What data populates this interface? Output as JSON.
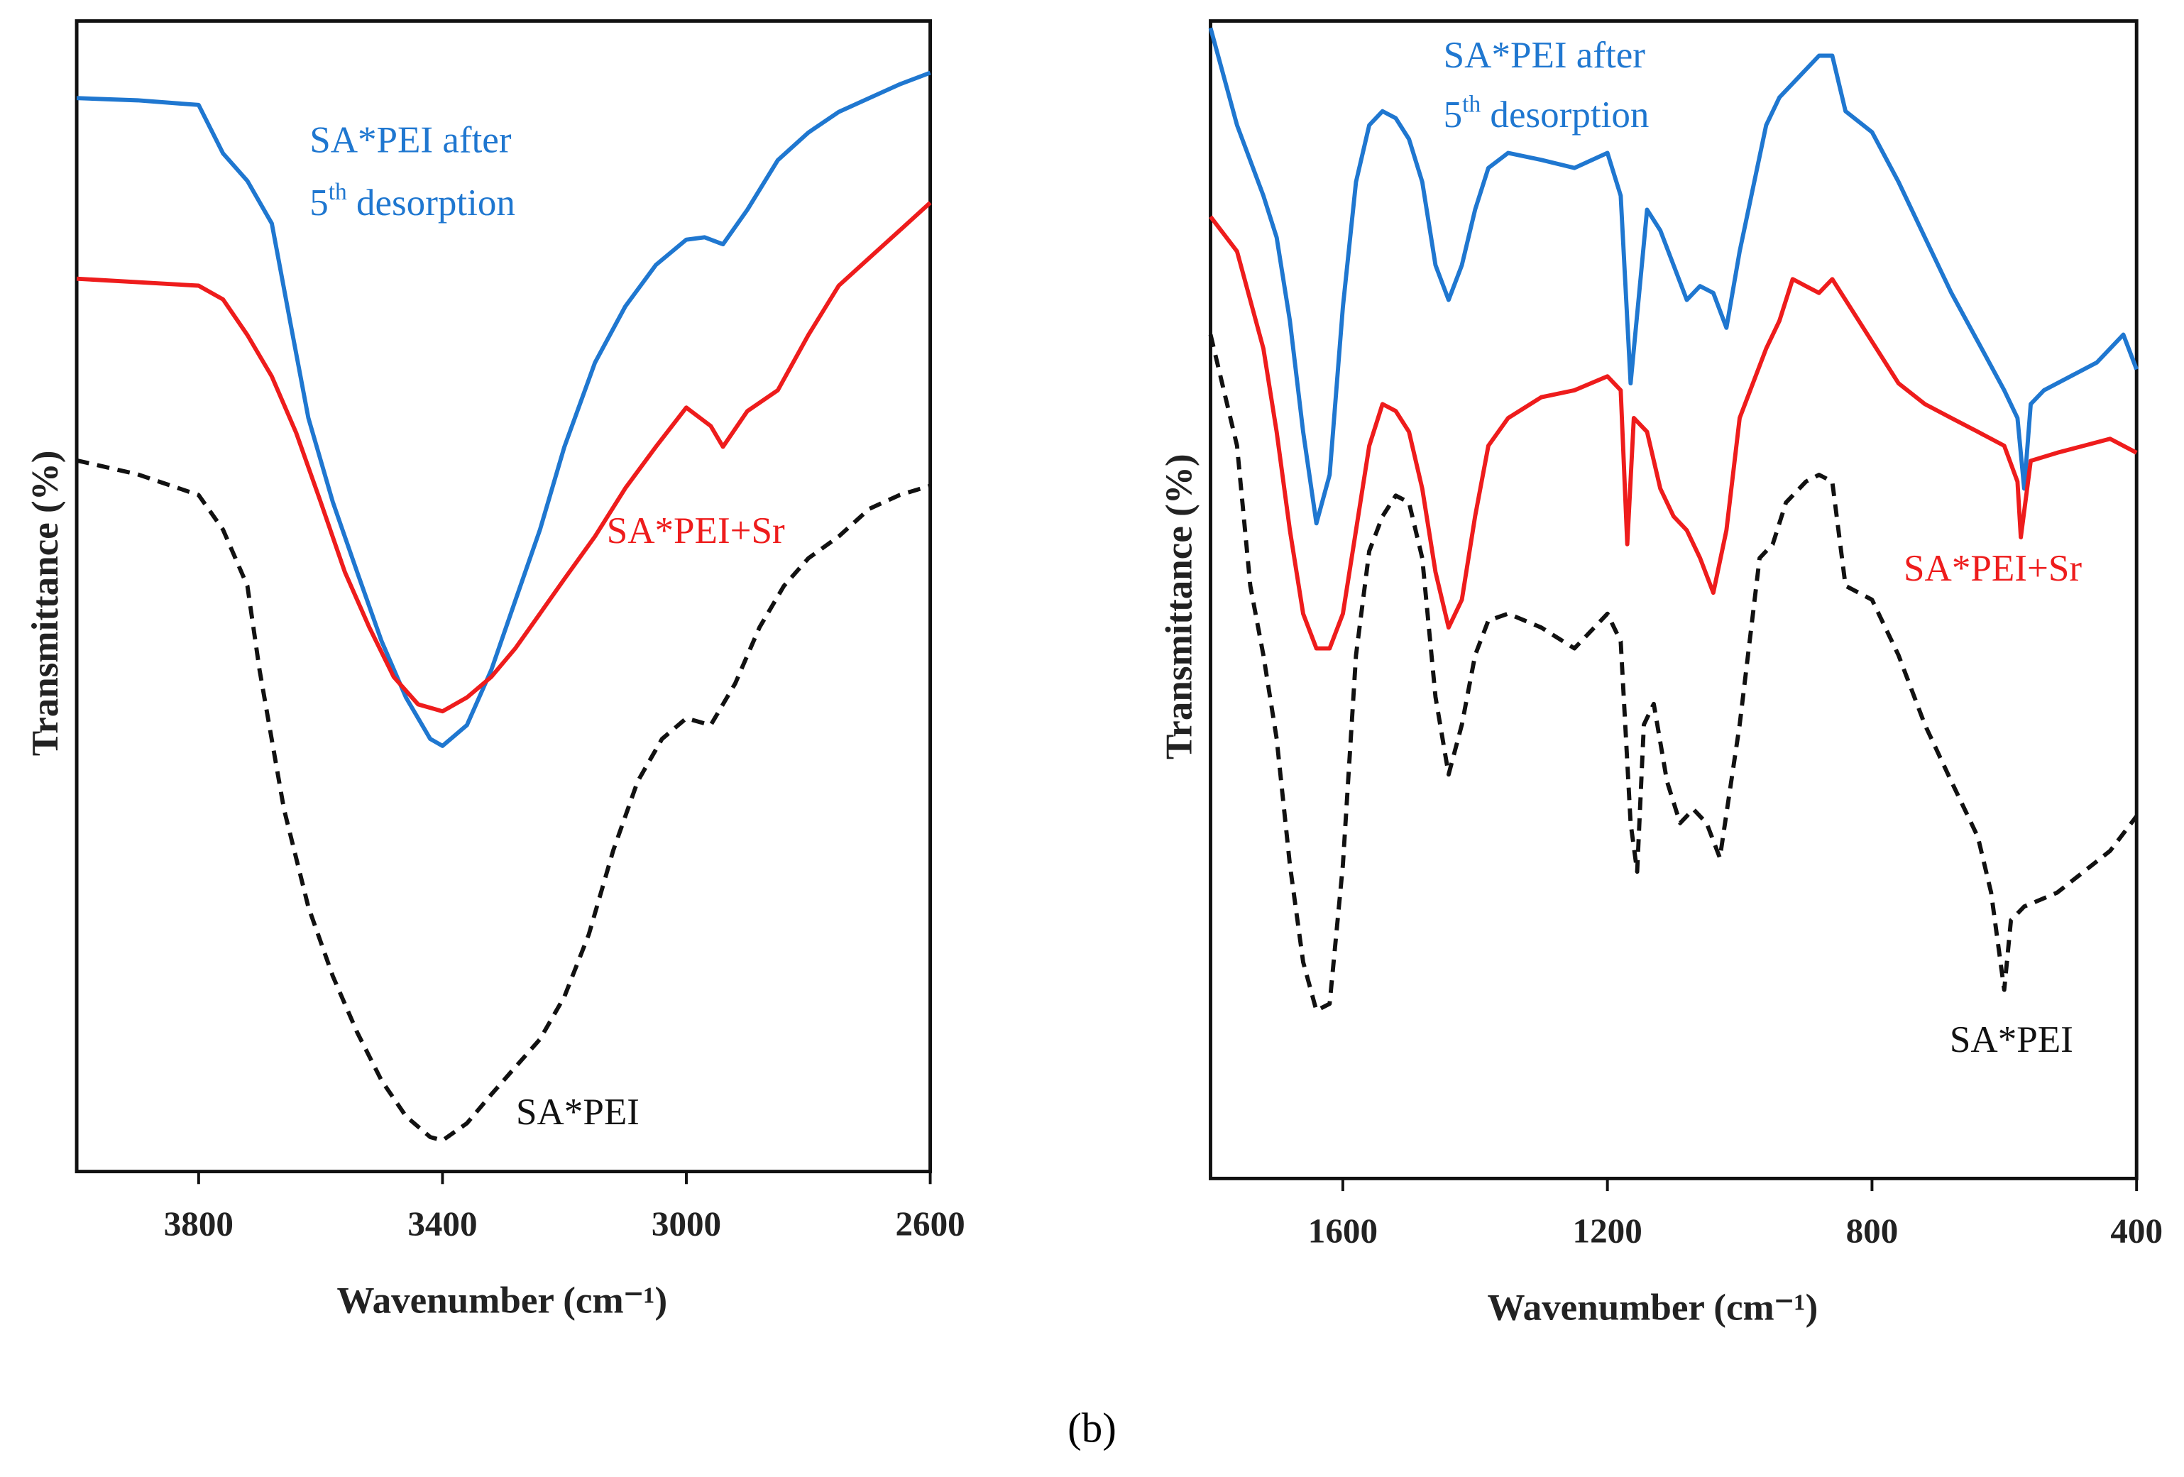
{
  "caption": "(b)",
  "chart_data": [
    {
      "type": "line",
      "xlabel": "Wavenumber (cm⁻¹)",
      "ylabel": "Transmittance (%)",
      "xlim": [
        4000,
        2600
      ],
      "ylim": [
        0,
        100
      ],
      "xticks": [
        3800,
        3400,
        3000,
        2600
      ],
      "series": [
        {
          "name_parts": [
            "SA*PEI after",
            "5",
            "th",
            " desorption"
          ],
          "color": "#1f77d0",
          "style": "solid",
          "x": [
            4000,
            3900,
            3800,
            3760,
            3720,
            3680,
            3650,
            3620,
            3580,
            3540,
            3500,
            3460,
            3420,
            3400,
            3360,
            3320,
            3280,
            3240,
            3200,
            3150,
            3100,
            3050,
            3000,
            2970,
            2940,
            2900,
            2850,
            2800,
            2750,
            2700,
            2650,
            2600
          ],
          "values": [
            93.3,
            93.1,
            92.7,
            88.5,
            86.1,
            82.4,
            73.9,
            65.5,
            58.2,
            52.1,
            46.1,
            41.2,
            37.6,
            37.0,
            38.8,
            43.6,
            49.7,
            55.8,
            63.0,
            70.3,
            75.2,
            78.8,
            81.0,
            81.2,
            80.6,
            83.6,
            87.9,
            90.3,
            92.1,
            93.3,
            94.5,
            95.5
          ]
        },
        {
          "name": "SA*PEI+Sr",
          "color": "#ee1c1c",
          "style": "solid",
          "x": [
            4000,
            3900,
            3800,
            3760,
            3720,
            3680,
            3640,
            3600,
            3560,
            3520,
            3480,
            3440,
            3400,
            3360,
            3320,
            3280,
            3240,
            3200,
            3150,
            3100,
            3050,
            3000,
            2960,
            2940,
            2900,
            2850,
            2800,
            2750,
            2700,
            2650,
            2600
          ],
          "values": [
            77.6,
            77.3,
            77.0,
            75.8,
            72.7,
            69.1,
            64.2,
            58.2,
            52.1,
            47.3,
            43.0,
            40.6,
            40.0,
            41.2,
            43.0,
            45.5,
            48.5,
            51.5,
            55.2,
            59.4,
            63.0,
            66.4,
            64.8,
            63.0,
            66.1,
            67.9,
            72.7,
            77.0,
            79.4,
            81.8,
            84.2
          ]
        },
        {
          "name": "SA*PEI",
          "color": "#111111",
          "style": "dashed",
          "x": [
            4000,
            3900,
            3800,
            3760,
            3720,
            3700,
            3660,
            3620,
            3580,
            3540,
            3500,
            3460,
            3420,
            3400,
            3360,
            3320,
            3280,
            3240,
            3200,
            3160,
            3120,
            3080,
            3040,
            3000,
            2960,
            2920,
            2880,
            2840,
            2800,
            2750,
            2700,
            2650,
            2600
          ],
          "values": [
            61.8,
            60.6,
            58.8,
            55.8,
            50.9,
            43.6,
            31.5,
            23.0,
            17.0,
            12.1,
            7.9,
            4.8,
            3.0,
            2.7,
            4.2,
            6.7,
            9.1,
            11.5,
            15.2,
            20.6,
            27.9,
            33.9,
            37.6,
            39.4,
            38.8,
            42.4,
            47.3,
            50.9,
            53.3,
            55.2,
            57.6,
            58.8,
            59.6
          ]
        }
      ]
    },
    {
      "type": "line",
      "xlabel": "Wavenumber (cm⁻¹)",
      "ylabel": "Transmittance (%)",
      "xlim": [
        1800,
        400
      ],
      "ylim": [
        0,
        100
      ],
      "xticks": [
        1600,
        1200,
        800,
        400
      ],
      "series": [
        {
          "name_parts": [
            "SA*PEI after",
            "5",
            "th",
            " desorption"
          ],
          "color": "#1f77d0",
          "style": "solid",
          "x": [
            1800,
            1760,
            1720,
            1700,
            1680,
            1660,
            1640,
            1620,
            1600,
            1580,
            1560,
            1540,
            1520,
            1500,
            1480,
            1460,
            1440,
            1420,
            1400,
            1380,
            1350,
            1300,
            1250,
            1200,
            1180,
            1165,
            1150,
            1140,
            1120,
            1100,
            1080,
            1060,
            1040,
            1020,
            1000,
            960,
            940,
            920,
            880,
            860,
            840,
            800,
            760,
            720,
            680,
            640,
            600,
            580,
            570,
            560,
            540,
            500,
            460,
            420,
            400
          ],
          "values": [
            99.4,
            91.0,
            84.9,
            81.3,
            74.1,
            64.5,
            56.6,
            60.8,
            75.3,
            86.1,
            91.0,
            92.2,
            91.6,
            89.8,
            86.1,
            78.9,
            75.9,
            78.9,
            83.7,
            87.3,
            88.6,
            88.0,
            87.3,
            88.6,
            84.9,
            68.7,
            77.7,
            83.7,
            81.9,
            78.9,
            75.9,
            77.1,
            76.5,
            73.5,
            80.1,
            91.0,
            93.4,
            94.6,
            97.0,
            97.0,
            92.2,
            90.4,
            86.1,
            81.3,
            76.5,
            72.3,
            68.1,
            65.7,
            59.6,
            66.9,
            68.1,
            69.3,
            70.5,
            72.9,
            69.9
          ]
        },
        {
          "name": "SA*PEI+Sr",
          "color": "#ee1c1c",
          "style": "solid",
          "x": [
            1800,
            1760,
            1720,
            1700,
            1680,
            1660,
            1640,
            1620,
            1600,
            1580,
            1560,
            1540,
            1520,
            1500,
            1480,
            1460,
            1440,
            1420,
            1400,
            1380,
            1350,
            1300,
            1250,
            1200,
            1180,
            1170,
            1160,
            1140,
            1120,
            1100,
            1080,
            1060,
            1040,
            1020,
            1000,
            960,
            940,
            920,
            900,
            880,
            860,
            840,
            800,
            760,
            720,
            680,
            640,
            600,
            580,
            575,
            560,
            520,
            480,
            440,
            400
          ],
          "values": [
            83.1,
            80.1,
            71.7,
            64.5,
            56.0,
            48.8,
            45.8,
            45.8,
            48.8,
            56.0,
            63.3,
            66.9,
            66.3,
            64.5,
            59.6,
            52.4,
            47.6,
            50.0,
            57.2,
            63.3,
            65.7,
            67.5,
            68.1,
            69.3,
            68.1,
            54.8,
            65.7,
            64.5,
            59.6,
            57.2,
            56.0,
            53.6,
            50.6,
            56.0,
            65.7,
            71.7,
            74.1,
            77.7,
            77.1,
            76.5,
            77.7,
            75.9,
            72.3,
            68.7,
            66.9,
            65.7,
            64.5,
            63.3,
            60.2,
            55.4,
            62.0,
            62.7,
            63.3,
            63.9,
            62.7
          ]
        },
        {
          "name": "SA*PEI",
          "color": "#111111",
          "style": "dashed",
          "x": [
            1800,
            1760,
            1740,
            1720,
            1700,
            1680,
            1660,
            1640,
            1620,
            1600,
            1580,
            1560,
            1540,
            1520,
            1500,
            1480,
            1460,
            1440,
            1420,
            1400,
            1380,
            1350,
            1300,
            1250,
            1200,
            1180,
            1165,
            1155,
            1145,
            1130,
            1110,
            1090,
            1070,
            1050,
            1030,
            1000,
            970,
            950,
            930,
            900,
            880,
            860,
            840,
            800,
            760,
            720,
            680,
            640,
            620,
            600,
            590,
            570,
            520,
            480,
            440,
            400
          ],
          "values": [
            72.9,
            63.3,
            51.2,
            45.2,
            38.0,
            27.1,
            18.7,
            14.5,
            15.1,
            27.1,
            45.2,
            54.2,
            57.2,
            59.0,
            58.4,
            53.6,
            41.6,
            34.9,
            39.2,
            45.2,
            48.2,
            48.8,
            47.6,
            45.8,
            48.8,
            46.4,
            30.7,
            26.5,
            39.2,
            41.0,
            34.3,
            30.7,
            31.9,
            30.7,
            27.7,
            39.2,
            53.6,
            54.8,
            58.4,
            60.2,
            60.8,
            60.2,
            51.2,
            50.0,
            45.2,
            39.2,
            34.3,
            29.5,
            24.7,
            16.3,
            22.3,
            23.5,
            24.7,
            26.5,
            28.3,
            31.3
          ]
        }
      ]
    }
  ]
}
